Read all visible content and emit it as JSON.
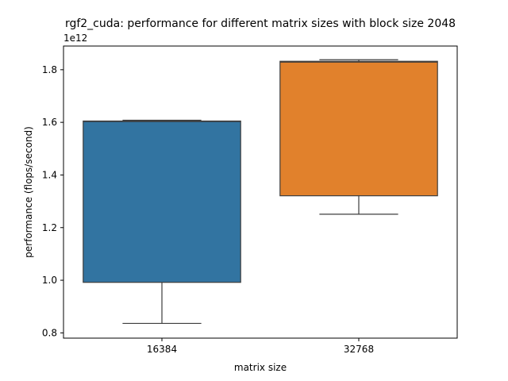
{
  "chart_data": {
    "type": "box",
    "title": "rgf2_cuda: performance for different matrix sizes with block size 2048",
    "xlabel": "matrix size",
    "ylabel": "performance (flops/second)",
    "offset_label": "1e12",
    "categories": [
      "16384",
      "32768"
    ],
    "colors": [
      "#3274a1",
      "#e1812c"
    ],
    "y_scale": 1000000000000,
    "ylim": [
      0.78,
      1.89
    ],
    "yticks": [
      0.8,
      1.0,
      1.2,
      1.4,
      1.6,
      1.8
    ],
    "ytick_labels": [
      "0.8",
      "1.0",
      "1.2",
      "1.4",
      "1.6",
      "1.8"
    ],
    "grid": false,
    "boxes": [
      {
        "category": "16384",
        "whisker_low": 0.836,
        "q1": 0.992,
        "median": 1.603,
        "q3": 1.605,
        "whisker_high": 1.608
      },
      {
        "category": "32768",
        "whisker_low": 1.251,
        "q1": 1.321,
        "median": 1.829,
        "q3": 1.832,
        "whisker_high": 1.838
      }
    ]
  }
}
